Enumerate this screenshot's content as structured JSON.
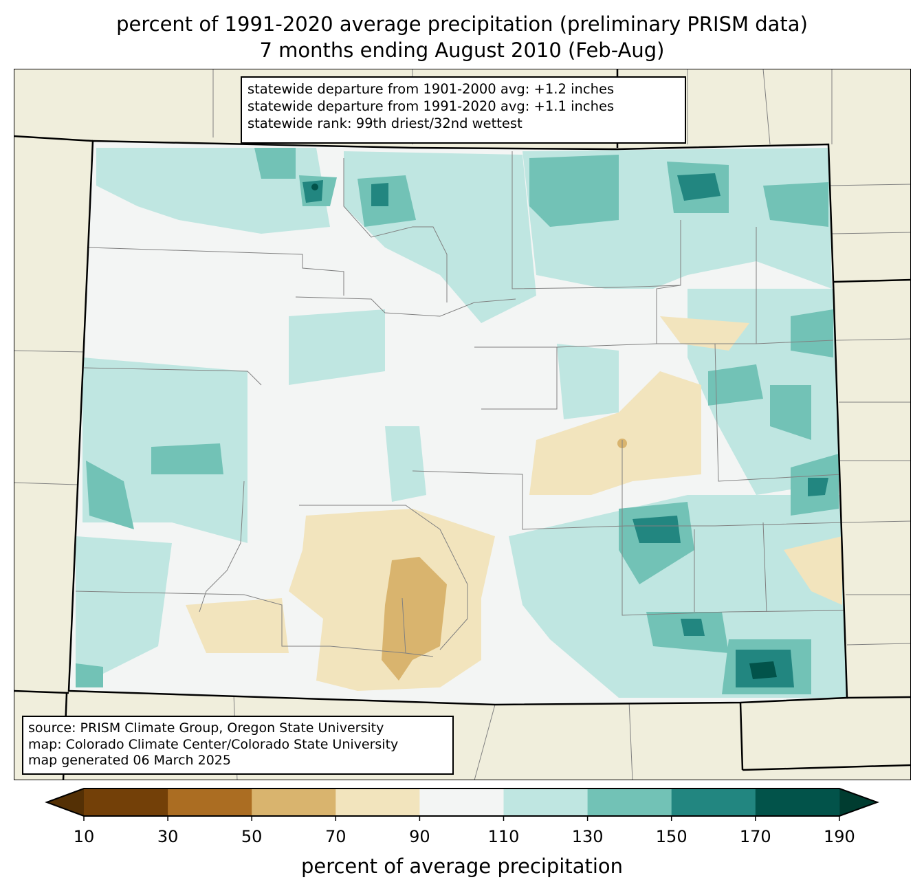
{
  "title": {
    "line1": "percent of 1991-2020 average precipitation (preliminary PRISM data)",
    "line2": "7 months ending August 2010 (Feb-Aug)"
  },
  "info_box": {
    "line1": "statewide departure from 1901-2000 avg: +1.2 inches",
    "line2": "statewide departure from 1991-2020 avg: +1.1 inches",
    "line3": "statewide rank: 99th driest/32nd wettest"
  },
  "source_box": {
    "line1": "source: PRISM Climate Group, Oregon State University",
    "line2": "map: Colorado Climate Center/Colorado State University",
    "line3": "map generated 06 March 2025"
  },
  "colorbar": {
    "label": "percent of average precipitation",
    "ticks": [
      "10",
      "30",
      "50",
      "70",
      "90",
      "110",
      "130",
      "150",
      "170",
      "190"
    ],
    "colors": [
      "#734008",
      "#ab6d22",
      "#d9b46e",
      "#f2e4bd",
      "#f3f5f4",
      "#bfe6e1",
      "#72c2b6",
      "#228680",
      "#02534a"
    ],
    "extend_low": "#543005",
    "extend_high": "#003c30"
  },
  "map_colors": {
    "background": "#f0eedc",
    "state_outline": "#000000",
    "county_lines": "#808080"
  }
}
